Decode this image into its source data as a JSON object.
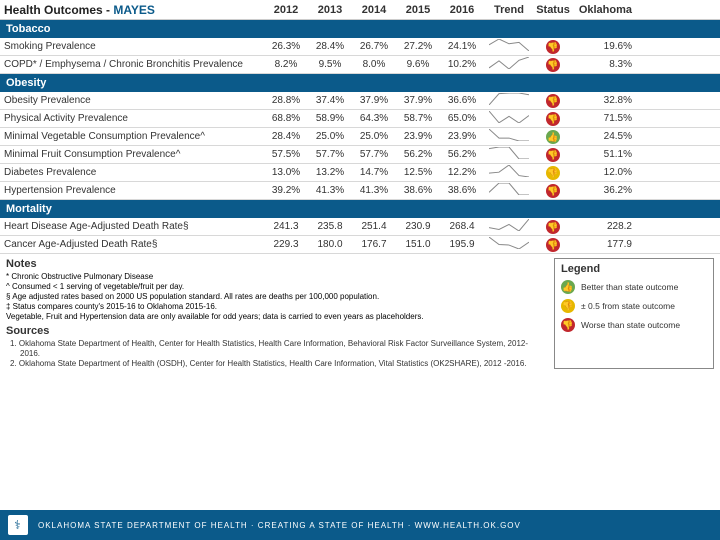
{
  "title_prefix": "Health Outcomes - ",
  "county": "MAYES",
  "years": [
    "2012",
    "2013",
    "2014",
    "2015",
    "2016"
  ],
  "trend_label": "Trend",
  "status_label": "Status",
  "oklahoma_label": "Oklahoma",
  "status_colors": {
    "worse": "#c1272d",
    "near": "#e6b800",
    "better": "#6aa84f"
  },
  "status_glyph": {
    "worse": "👎",
    "near": "👎",
    "better": "👍"
  },
  "sections": [
    {
      "name": "Tobacco",
      "rows": [
        {
          "label": "Smoking Prevalence",
          "vals": [
            "26.3%",
            "28.4%",
            "26.7%",
            "27.2%",
            "24.1%"
          ],
          "spark": [
            26.3,
            28.4,
            26.7,
            27.2,
            24.1
          ],
          "status": "worse",
          "ok": "19.6%"
        },
        {
          "label": "COPD* / Emphysema / Chronic Bronchitis Prevalence",
          "vals": [
            "8.2%",
            "9.5%",
            "8.0%",
            "9.6%",
            "10.2%"
          ],
          "spark": [
            8.2,
            9.5,
            8.0,
            9.6,
            10.2
          ],
          "status": "worse",
          "ok": "8.3%"
        }
      ]
    },
    {
      "name": "Obesity",
      "rows": [
        {
          "label": "Obesity Prevalence",
          "vals": [
            "28.8%",
            "37.4%",
            "37.9%",
            "37.9%",
            "36.6%"
          ],
          "spark": [
            28.8,
            37.4,
            37.9,
            37.9,
            36.6
          ],
          "status": "worse",
          "ok": "32.8%"
        },
        {
          "label": "Physical Activity Prevalence",
          "vals": [
            "68.8%",
            "58.9%",
            "64.3%",
            "58.7%",
            "65.0%"
          ],
          "spark": [
            68.8,
            58.9,
            64.3,
            58.7,
            65.0
          ],
          "status": "worse",
          "ok": "71.5%"
        },
        {
          "label": "Minimal Vegetable Consumption Prevalence^",
          "vals": [
            "28.4%",
            "25.0%",
            "25.0%",
            "23.9%",
            "23.9%"
          ],
          "spark": [
            28.4,
            25.0,
            25.0,
            23.9,
            23.9
          ],
          "status": "better",
          "ok": "24.5%"
        },
        {
          "label": "Minimal Fruit Consumption Prevalence^",
          "vals": [
            "57.5%",
            "57.7%",
            "57.7%",
            "56.2%",
            "56.2%"
          ],
          "spark": [
            57.5,
            57.7,
            57.7,
            56.2,
            56.2
          ],
          "status": "worse",
          "ok": "51.1%"
        },
        {
          "label": "Diabetes Prevalence",
          "vals": [
            "13.0%",
            "13.2%",
            "14.7%",
            "12.5%",
            "12.2%"
          ],
          "spark": [
            13.0,
            13.2,
            14.7,
            12.5,
            12.2
          ],
          "status": "near",
          "ok": "12.0%"
        },
        {
          "label": "Hypertension Prevalence",
          "vals": [
            "39.2%",
            "41.3%",
            "41.3%",
            "38.6%",
            "38.6%"
          ],
          "spark": [
            39.2,
            41.3,
            41.3,
            38.6,
            38.6
          ],
          "status": "worse",
          "ok": "36.2%"
        }
      ]
    },
    {
      "name": "Mortality",
      "rows": [
        {
          "label": "Heart Disease Age-Adjusted Death Rate§",
          "vals": [
            "241.3",
            "235.8",
            "251.4",
            "230.9",
            "268.4"
          ],
          "spark": [
            241.3,
            235.8,
            251.4,
            230.9,
            268.4
          ],
          "status": "worse",
          "ok": "228.2"
        },
        {
          "label": "Cancer Age-Adjusted Death Rate§",
          "vals": [
            "229.3",
            "180.0",
            "176.7",
            "151.0",
            "195.9"
          ],
          "spark": [
            229.3,
            180.0,
            176.7,
            151.0,
            195.9
          ],
          "status": "worse",
          "ok": "177.9"
        }
      ]
    }
  ],
  "notes_header": "Notes",
  "notes": [
    "* Chronic Obstructive Pulmonary Disease",
    "^ Consumed < 1 serving of vegetable/fruit per day.",
    "§ Age adjusted rates based on 2000 US population standard. All rates are deaths per 100,000 population.",
    "‡ Status compares county's 2015-16 to Oklahoma 2015-16.",
    "Vegetable, Fruit and Hypertension data are only available for odd years; data is carried to even years as placeholders."
  ],
  "sources_header": "Sources",
  "sources": [
    "1.   Oklahoma State Department of Health, Center for Health Statistics, Health Care Information, Behavioral Risk Factor Surveillance System, 2012-2016.",
    "2.   Oklahoma State Department of Health (OSDH), Center for Health Statistics, Health Care Information, Vital Statistics (OK2SHARE), 2012 -2016."
  ],
  "legend_header": "Legend",
  "legend": [
    {
      "status": "better",
      "text": "Better than state outcome"
    },
    {
      "status": "near",
      "text": "± 0.5 from state outcome"
    },
    {
      "status": "worse",
      "text": "Worse than state outcome"
    }
  ],
  "footer_text": "OKLAHOMA STATE DEPARTMENT OF HEALTH · CREATING A STATE OF HEALTH · WWW.HEALTH.OK.GOV",
  "spark_color": "#888888"
}
